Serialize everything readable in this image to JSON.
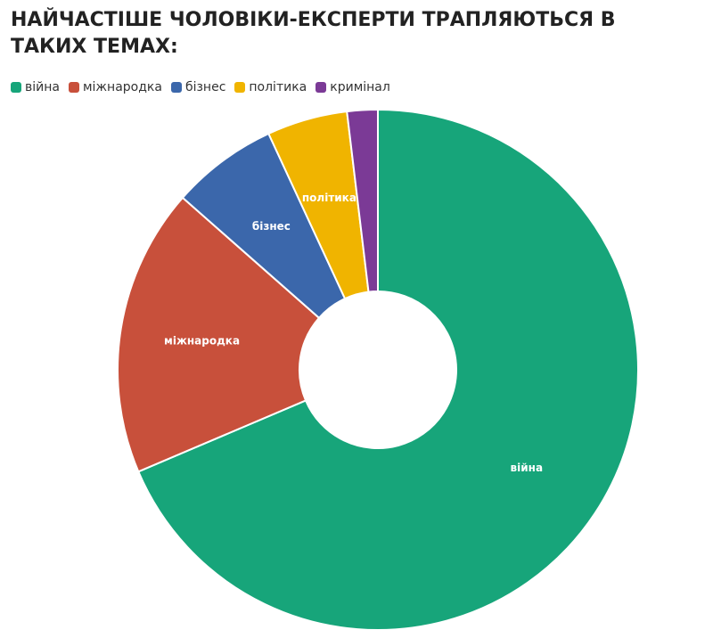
{
  "chart_data": {
    "type": "pie",
    "title": "НАЙЧАСТІШЕ ЧОЛОВІКИ-ЕКСПЕРТИ ТРАПЛЯЮТЬСЯ В ТАКИХ ТЕМАХ:",
    "categories": [
      "війна",
      "міжнародка",
      "бізнес",
      "політика",
      "кримінал"
    ],
    "values": [
      68.6,
      17.9,
      6.6,
      5.0,
      1.9
    ],
    "colors": [
      "#17a57a",
      "#c8503b",
      "#3b67ab",
      "#f0b400",
      "#7b3a96"
    ],
    "donut": true
  }
}
